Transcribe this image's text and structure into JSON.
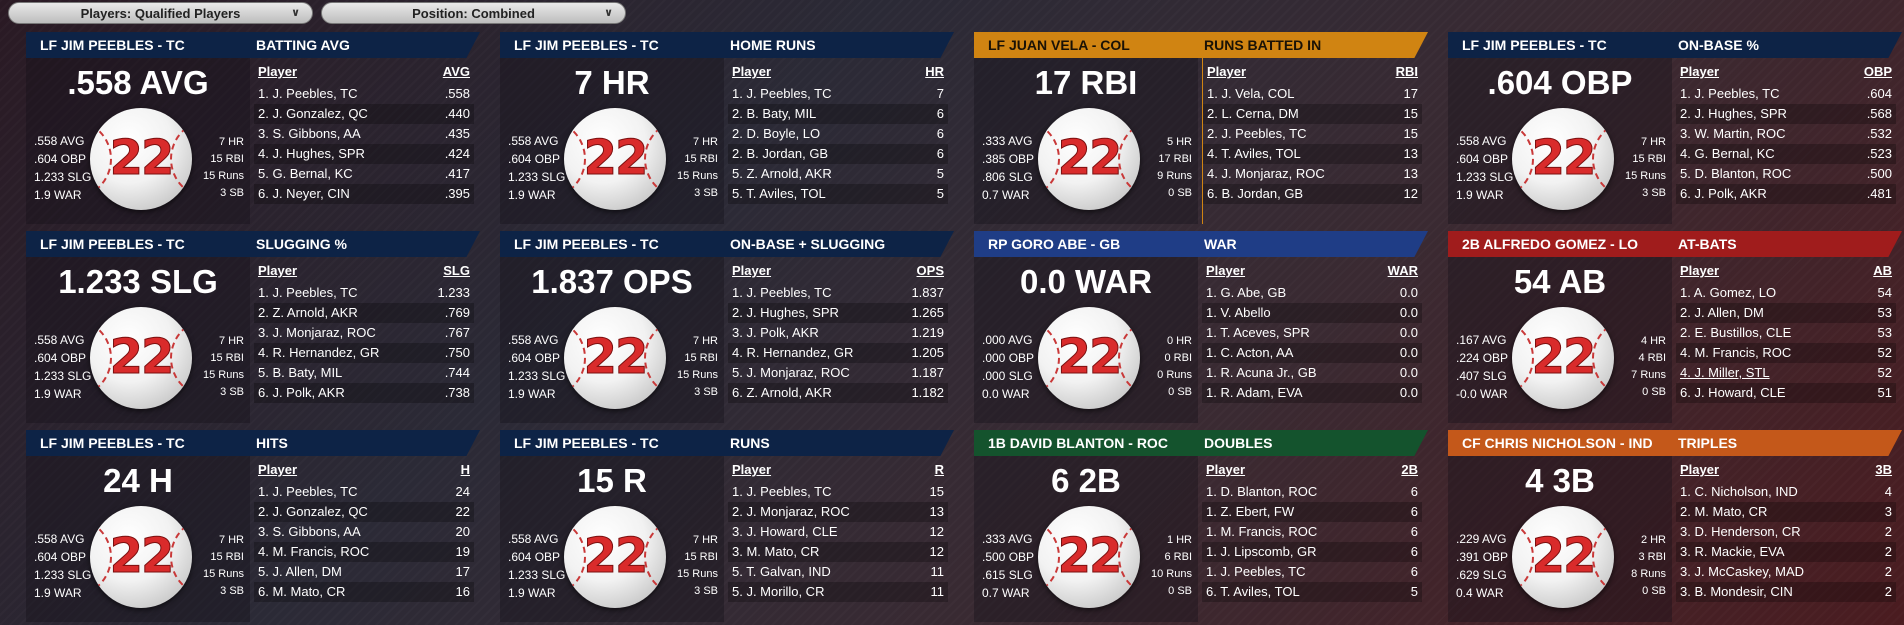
{
  "filters": [
    {
      "label": "Players: Qualified Players"
    },
    {
      "label": "Position: Combined"
    }
  ],
  "cards": [
    {
      "player": "LF JIM PEEBLES - TC",
      "stat": "BATTING AVG",
      "color": "navy",
      "big": ".558 AVG",
      "number": "22",
      "slash": [
        ".558 AVG",
        ".604 OBP",
        "1.233 SLG",
        "1.9 WAR"
      ],
      "side": [
        "7 HR",
        "15 RBI",
        "15 Runs",
        "3 SB"
      ],
      "col_player": "Player",
      "col_stat": "AVG",
      "rows": [
        [
          "1. J. Peebles, TC",
          ".558"
        ],
        [
          "2. J. Gonzalez, QC",
          ".440"
        ],
        [
          "3. S. Gibbons, AA",
          ".435"
        ],
        [
          "4. J. Hughes, SPR",
          ".424"
        ],
        [
          "5. G. Bernal, KC",
          ".417"
        ],
        [
          "6. J. Neyer, CIN",
          ".395"
        ]
      ]
    },
    {
      "player": "LF JIM PEEBLES - TC",
      "stat": "HOME RUNS",
      "color": "navy",
      "big": "7 HR",
      "number": "22",
      "slash": [
        ".558 AVG",
        ".604 OBP",
        "1.233 SLG",
        "1.9 WAR"
      ],
      "side": [
        "7 HR",
        "15 RBI",
        "15 Runs",
        "3 SB"
      ],
      "col_player": "Player",
      "col_stat": "HR",
      "rows": [
        [
          "1. J. Peebles, TC",
          "7"
        ],
        [
          "2. B. Baty, MIL",
          "6"
        ],
        [
          "2. D. Boyle, LO",
          "6"
        ],
        [
          "2. B. Jordan, GB",
          "6"
        ],
        [
          "5. Z. Arnold, AKR",
          "5"
        ],
        [
          "5. T. Aviles, TOL",
          "5"
        ]
      ]
    },
    {
      "player": "LF JUAN VELA - COL",
      "stat": "RUNS BATTED IN",
      "color": "orange",
      "big": "17 RBI",
      "number": "22",
      "slash": [
        ".333 AVG",
        ".385 OBP",
        ".806 SLG",
        "0.7 WAR"
      ],
      "side": [
        "5 HR",
        "17 RBI",
        "9 Runs",
        "0 SB"
      ],
      "col_player": "Player",
      "col_stat": "RBI",
      "rows": [
        [
          "1. J. Vela, COL",
          "17"
        ],
        [
          "2. L. Cerna, DM",
          "15"
        ],
        [
          "2. J. Peebles, TC",
          "15"
        ],
        [
          "4. T. Aviles, TOL",
          "13"
        ],
        [
          "4. J. Monjaraz, ROC",
          "13"
        ],
        [
          "6. B. Jordan, GB",
          "12"
        ]
      ]
    },
    {
      "player": "LF JIM PEEBLES - TC",
      "stat": "ON-BASE %",
      "color": "navy",
      "big": ".604 OBP",
      "number": "22",
      "slash": [
        ".558 AVG",
        ".604 OBP",
        "1.233 SLG",
        "1.9 WAR"
      ],
      "side": [
        "7 HR",
        "15 RBI",
        "15 Runs",
        "3 SB"
      ],
      "col_player": "Player",
      "col_stat": "OBP",
      "rows": [
        [
          "1. J. Peebles, TC",
          ".604"
        ],
        [
          "2. J. Hughes, SPR",
          ".568"
        ],
        [
          "3. W. Martin, ROC",
          ".532"
        ],
        [
          "4. G. Bernal, KC",
          ".523"
        ],
        [
          "5. D. Blanton, ROC",
          ".500"
        ],
        [
          "6. J. Polk, AKR",
          ".481"
        ]
      ]
    },
    {
      "player": "LF JIM PEEBLES - TC",
      "stat": "SLUGGING %",
      "color": "navy",
      "big": "1.233 SLG",
      "number": "22",
      "slash": [
        ".558 AVG",
        ".604 OBP",
        "1.233 SLG",
        "1.9 WAR"
      ],
      "side": [
        "7 HR",
        "15 RBI",
        "15 Runs",
        "3 SB"
      ],
      "col_player": "Player",
      "col_stat": "SLG",
      "rows": [
        [
          "1. J. Peebles, TC",
          "1.233"
        ],
        [
          "2. Z. Arnold, AKR",
          ".769"
        ],
        [
          "3. J. Monjaraz, ROC",
          ".767"
        ],
        [
          "4. R. Hernandez, GR",
          ".750"
        ],
        [
          "5. B. Baty, MIL",
          ".744"
        ],
        [
          "6. J. Polk, AKR",
          ".738"
        ]
      ]
    },
    {
      "player": "LF JIM PEEBLES - TC",
      "stat": "ON-BASE + SLUGGING",
      "color": "navy",
      "big": "1.837 OPS",
      "number": "22",
      "slash": [
        ".558 AVG",
        ".604 OBP",
        "1.233 SLG",
        "1.9 WAR"
      ],
      "side": [
        "7 HR",
        "15 RBI",
        "15 Runs",
        "3 SB"
      ],
      "col_player": "Player",
      "col_stat": "OPS",
      "rows": [
        [
          "1. J. Peebles, TC",
          "1.837"
        ],
        [
          "2. J. Hughes, SPR",
          "1.265"
        ],
        [
          "3. J. Polk, AKR",
          "1.219"
        ],
        [
          "4. R. Hernandez, GR",
          "1.205"
        ],
        [
          "5. J. Monjaraz, ROC",
          "1.187"
        ],
        [
          "6. Z. Arnold, AKR",
          "1.182"
        ]
      ]
    },
    {
      "player": "RP GORO ABE - GB",
      "stat": "WAR",
      "color": "blue",
      "big": "0.0 WAR",
      "number": "22",
      "slash": [
        ".000 AVG",
        ".000 OBP",
        ".000 SLG",
        "0.0 WAR"
      ],
      "side": [
        "0 HR",
        "0 RBI",
        "0 Runs",
        "0 SB"
      ],
      "col_player": "Player",
      "col_stat": "WAR",
      "rows": [
        [
          "1. G. Abe, GB",
          "0.0"
        ],
        [
          "1. V. Abello",
          "0.0"
        ],
        [
          "1. T. Aceves, SPR",
          "0.0"
        ],
        [
          "1. C. Acton, AA",
          "0.0"
        ],
        [
          "1. R. Acuna Jr., GB",
          "0.0"
        ],
        [
          "1. R. Adam, EVA",
          "0.0"
        ]
      ]
    },
    {
      "player": "2B ALFREDO GOMEZ - LO",
      "stat": "AT-BATS",
      "color": "red",
      "big": "54 AB",
      "number": "22",
      "slash": [
        ".167 AVG",
        ".224 OBP",
        ".407 SLG",
        "-0.0 WAR"
      ],
      "side": [
        "4 HR",
        "4 RBI",
        "7 Runs",
        "0 SB"
      ],
      "col_player": "Player",
      "col_stat": "AB",
      "rows": [
        [
          "1. A. Gomez, LO",
          "54"
        ],
        [
          "2. J. Allen, DM",
          "53"
        ],
        [
          "2. E. Bustillos, CLE",
          "53"
        ],
        [
          "4. M. Francis, ROC",
          "52"
        ],
        [
          "4. J. Miller, STL",
          "52"
        ],
        [
          "6. J. Howard, CLE",
          "51"
        ]
      ]
    },
    {
      "player": "LF JIM PEEBLES - TC",
      "stat": "HITS",
      "color": "navy",
      "big": "24 H",
      "number": "22",
      "slash": [
        ".558 AVG",
        ".604 OBP",
        "1.233 SLG",
        "1.9 WAR"
      ],
      "side": [
        "7 HR",
        "15 RBI",
        "15 Runs",
        "3 SB"
      ],
      "col_player": "Player",
      "col_stat": "H",
      "rows": [
        [
          "1. J. Peebles, TC",
          "24"
        ],
        [
          "2. J. Gonzalez, QC",
          "22"
        ],
        [
          "3. S. Gibbons, AA",
          "20"
        ],
        [
          "4. M. Francis, ROC",
          "19"
        ],
        [
          "5. J. Allen, DM",
          "17"
        ],
        [
          "6. M. Mato, CR",
          "16"
        ]
      ]
    },
    {
      "player": "LF JIM PEEBLES - TC",
      "stat": "RUNS",
      "color": "navy",
      "big": "15 R",
      "number": "22",
      "slash": [
        ".558 AVG",
        ".604 OBP",
        "1.233 SLG",
        "1.9 WAR"
      ],
      "side": [
        "7 HR",
        "15 RBI",
        "15 Runs",
        "3 SB"
      ],
      "col_player": "Player",
      "col_stat": "R",
      "rows": [
        [
          "1. J. Peebles, TC",
          "15"
        ],
        [
          "2. J. Monjaraz, ROC",
          "13"
        ],
        [
          "3. J. Howard, CLE",
          "12"
        ],
        [
          "3. M. Mato, CR",
          "12"
        ],
        [
          "5. T. Galvan, IND",
          "11"
        ],
        [
          "5. J. Morillo, CR",
          "11"
        ]
      ]
    },
    {
      "player": "1B DAVID BLANTON - ROC",
      "stat": "DOUBLES",
      "color": "green",
      "big": "6 2B",
      "number": "22",
      "slash": [
        ".333 AVG",
        ".500 OBP",
        ".615 SLG",
        "0.7 WAR"
      ],
      "side": [
        "1 HR",
        "6 RBI",
        "10 Runs",
        "0 SB"
      ],
      "col_player": "Player",
      "col_stat": "2B",
      "rows": [
        [
          "1. D. Blanton, ROC",
          "6"
        ],
        [
          "1. Z. Ebert, FW",
          "6"
        ],
        [
          "1. M. Francis, ROC",
          "6"
        ],
        [
          "1. J. Lipscomb, GR",
          "6"
        ],
        [
          "1. J. Peebles, TC",
          "6"
        ],
        [
          "6. T. Aviles, TOL",
          "5"
        ]
      ]
    },
    {
      "player": "CF CHRIS NICHOLSON - IND",
      "stat": "TRIPLES",
      "color": "deeporange",
      "big": "4 3B",
      "number": "22",
      "slash": [
        ".229 AVG",
        ".391 OBP",
        ".629 SLG",
        "0.4 WAR"
      ],
      "side": [
        "2 HR",
        "3 RBI",
        "8 Runs",
        "0 SB"
      ],
      "col_player": "Player",
      "col_stat": "3B",
      "rows": [
        [
          "1. C. Nicholson, IND",
          "4"
        ],
        [
          "2. M. Mato, CR",
          "3"
        ],
        [
          "3. D. Henderson, CR",
          "2"
        ],
        [
          "3. R. Mackie, EVA",
          "2"
        ],
        [
          "3. J. McCaskey, MAD",
          "2"
        ],
        [
          "3. B. Mondesir, CIN",
          "2"
        ]
      ]
    }
  ]
}
